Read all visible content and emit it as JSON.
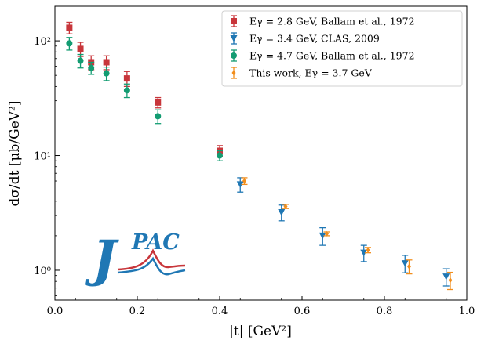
{
  "chart_data": {
    "type": "scatter",
    "xlabel": "|t| [GeV²]",
    "ylabel": "dσ/dt [μb/GeV²]",
    "xlim": [
      0,
      1.0
    ],
    "ylim": [
      0.55,
      200
    ],
    "yscale": "log",
    "grid": false,
    "legend_position": "top-right",
    "x_ticks": [
      {
        "value": 0.0,
        "label": "0.0"
      },
      {
        "value": 0.2,
        "label": "0.2"
      },
      {
        "value": 0.4,
        "label": "0.4"
      },
      {
        "value": 0.6,
        "label": "0.6"
      },
      {
        "value": 0.8,
        "label": "0.8"
      },
      {
        "value": 1.0,
        "label": "1.0"
      }
    ],
    "y_ticks": [
      {
        "value": 1,
        "label": "10⁰"
      },
      {
        "value": 10,
        "label": "10¹"
      },
      {
        "value": 100,
        "label": "10²"
      }
    ],
    "series": [
      {
        "name": "Eγ = 2.8 GeV, Ballam et al., 1972",
        "color": "#c8363b",
        "marker": "square",
        "points": [
          {
            "x": 0.035,
            "y": 130,
            "yerr": [
              15,
              15
            ]
          },
          {
            "x": 0.062,
            "y": 85,
            "yerr": [
              12,
              12
            ]
          },
          {
            "x": 0.088,
            "y": 65,
            "yerr": [
              9,
              9
            ]
          },
          {
            "x": 0.125,
            "y": 65,
            "yerr": [
              9,
              9
            ]
          },
          {
            "x": 0.175,
            "y": 47,
            "yerr": [
              7,
              7
            ]
          },
          {
            "x": 0.25,
            "y": 29,
            "yerr": [
              3,
              3
            ]
          },
          {
            "x": 0.4,
            "y": 11,
            "yerr": [
              1.2,
              1.2
            ]
          }
        ]
      },
      {
        "name": "Eγ = 3.4 GeV, CLAS, 2009",
        "color": "#1f77b4",
        "marker": "triangle-down",
        "points": [
          {
            "x": 0.45,
            "y": 5.6,
            "yerr": [
              0.8,
              0.8
            ]
          },
          {
            "x": 0.55,
            "y": 3.2,
            "yerr": [
              0.5,
              0.5
            ]
          },
          {
            "x": 0.65,
            "y": 2.0,
            "yerr": [
              0.35,
              0.35
            ]
          },
          {
            "x": 0.75,
            "y": 1.42,
            "yerr": [
              0.23,
              0.23
            ]
          },
          {
            "x": 0.85,
            "y": 1.15,
            "yerr": [
              0.2,
              0.2
            ]
          },
          {
            "x": 0.95,
            "y": 0.88,
            "yerr": [
              0.15,
              0.15
            ]
          }
        ]
      },
      {
        "name": "Eγ = 4.7 GeV, Ballam et al., 1972",
        "color": "#139c72",
        "marker": "circle",
        "points": [
          {
            "x": 0.035,
            "y": 95,
            "yerr": [
              12,
              12
            ]
          },
          {
            "x": 0.062,
            "y": 67,
            "yerr": [
              9,
              9
            ]
          },
          {
            "x": 0.088,
            "y": 58,
            "yerr": [
              7,
              7
            ]
          },
          {
            "x": 0.125,
            "y": 52,
            "yerr": [
              7,
              7
            ]
          },
          {
            "x": 0.175,
            "y": 37,
            "yerr": [
              5,
              5
            ]
          },
          {
            "x": 0.25,
            "y": 22,
            "yerr": [
              3,
              3
            ]
          },
          {
            "x": 0.4,
            "y": 10,
            "yerr": [
              1,
              1
            ]
          }
        ]
      },
      {
        "name": "This work, Eγ = 3.7 GeV",
        "color": "#f28e1c",
        "marker": "diamond",
        "points": [
          {
            "x": 0.46,
            "y": 6.0,
            "yerr": [
              0.4,
              0.4
            ]
          },
          {
            "x": 0.56,
            "y": 3.6,
            "yerr": [
              0.15,
              0.15
            ]
          },
          {
            "x": 0.66,
            "y": 2.08,
            "yerr": [
              0.08,
              0.08
            ]
          },
          {
            "x": 0.76,
            "y": 1.5,
            "yerr": [
              0.08,
              0.08
            ]
          },
          {
            "x": 0.86,
            "y": 1.08,
            "yerr": [
              0.15,
              0.15
            ]
          },
          {
            "x": 0.96,
            "y": 0.82,
            "yerr": [
              0.14,
              0.14
            ]
          }
        ]
      }
    ]
  },
  "logo": {
    "text_j": "J",
    "text_pac": "PAC",
    "colors": {
      "blue": "#1f77b4",
      "red": "#c8363b"
    }
  }
}
